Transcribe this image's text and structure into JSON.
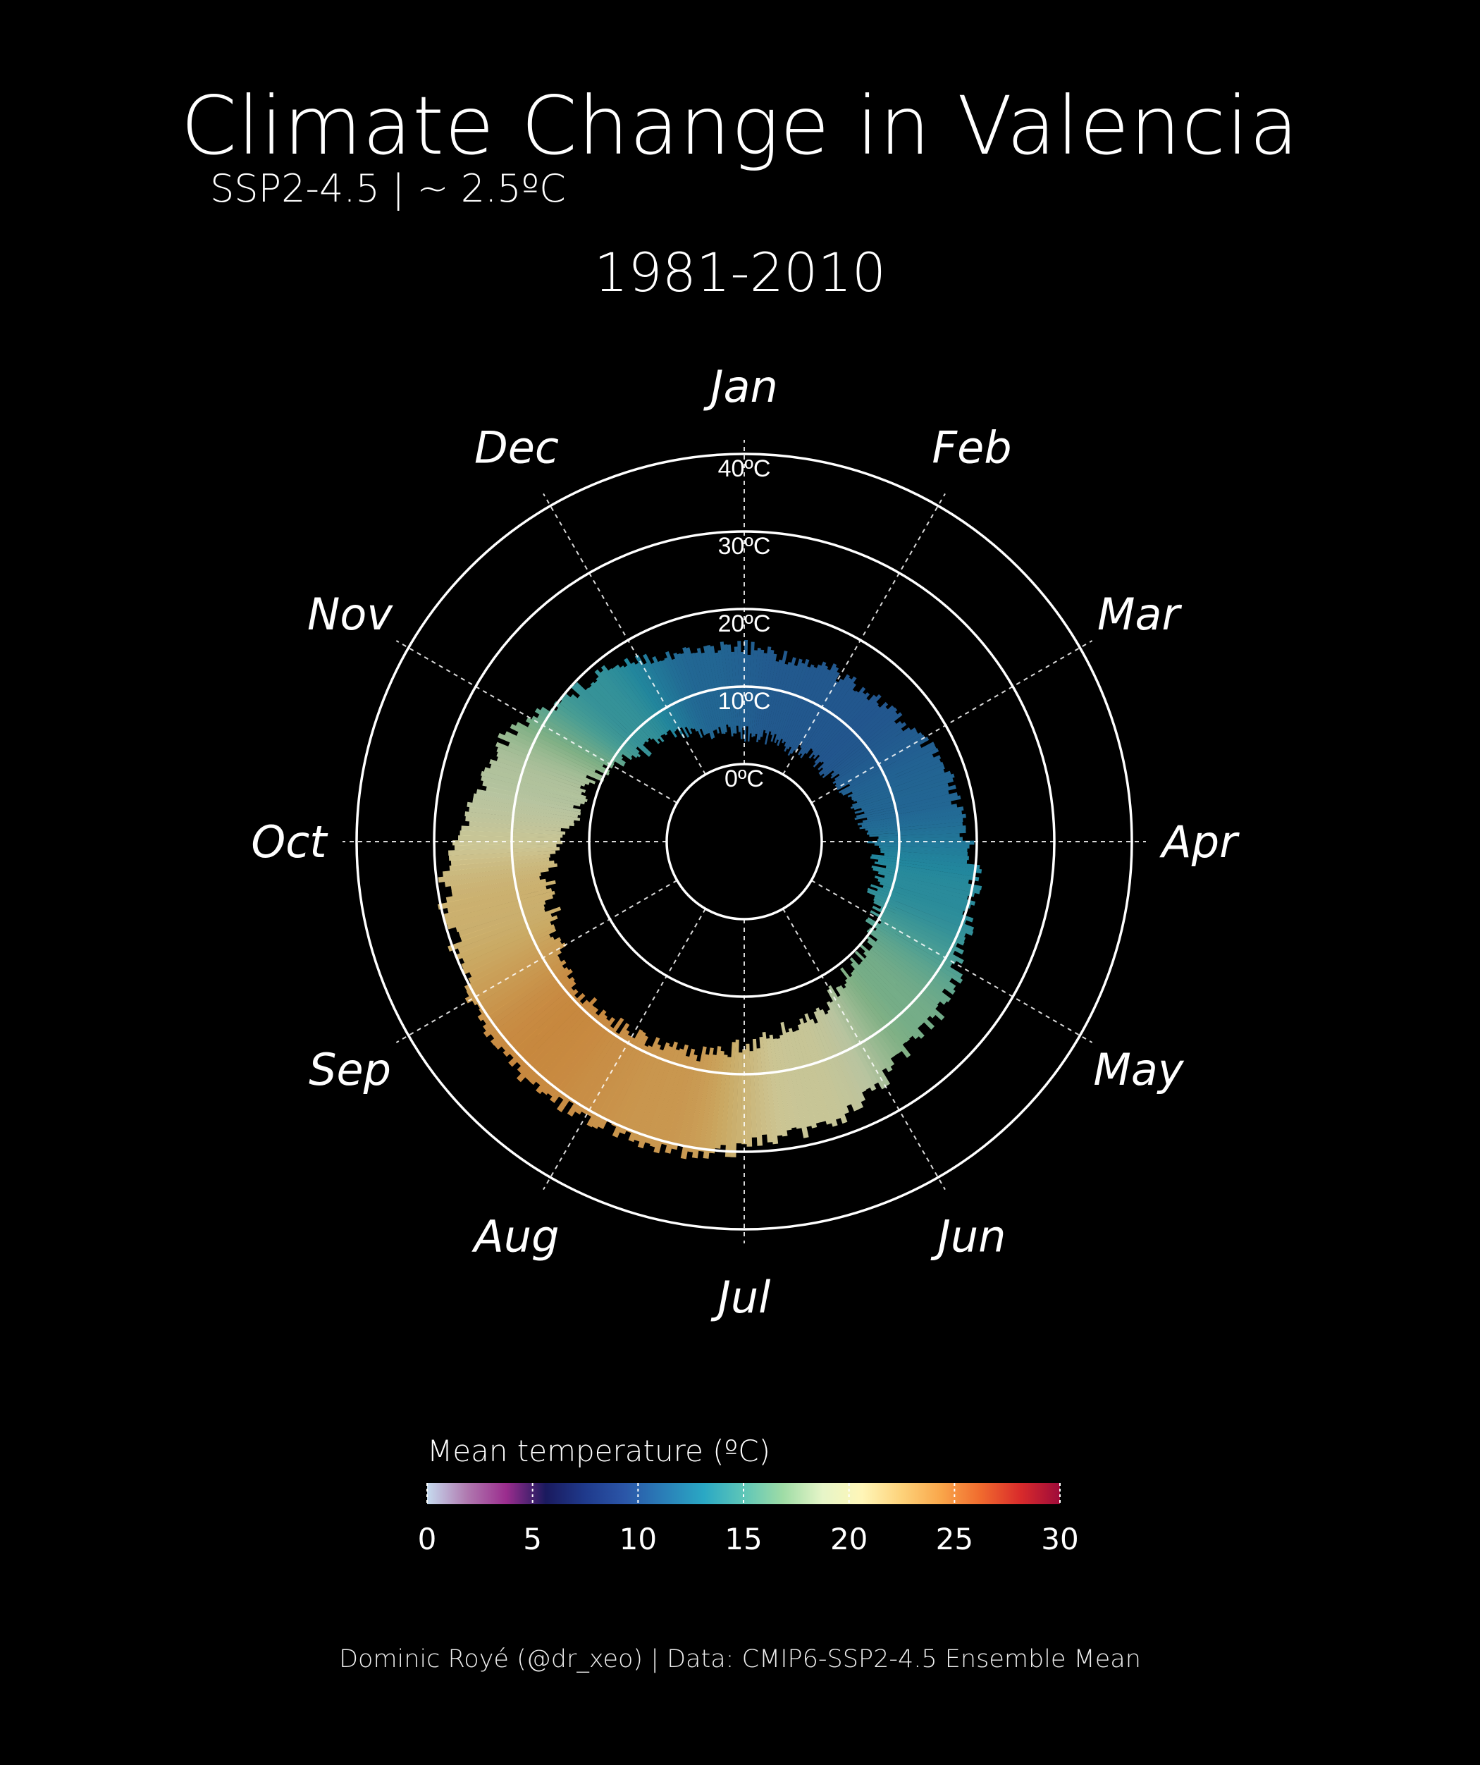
{
  "header": {
    "title": "Climate Change in Valencia",
    "subtitle": "SSP2-4.5 | ~ 2.5ºC",
    "period": "1981-2010"
  },
  "legend": {
    "title": "Mean temperature (ºC)",
    "ticks": [
      "0",
      "5",
      "10",
      "15",
      "20",
      "25",
      "30"
    ],
    "colors": [
      "#c6dbef",
      "#b07ab0",
      "#9b2d8e",
      "#1a1a5e",
      "#1f3a8c",
      "#2b56a8",
      "#2a7fb8",
      "#2aa8c4",
      "#5ec6b8",
      "#9fdca6",
      "#e6f5c8",
      "#fff6b8",
      "#fdd27a",
      "#f9a64a",
      "#f06a2e",
      "#d92b2b",
      "#9e0b3a"
    ]
  },
  "footer": "Dominic Royé (@dr_xeo) | Data: CMIP6-SSP2-4.5 Ensemble Mean",
  "chart_data": {
    "type": "polar-bar",
    "months": [
      "Jan",
      "Feb",
      "Mar",
      "Apr",
      "May",
      "Jun",
      "Jul",
      "Aug",
      "Sep",
      "Oct",
      "Nov",
      "Dec"
    ],
    "radial_ticks": [
      "0ºC",
      "10ºC",
      "20ºC",
      "30ºC",
      "40ºC"
    ],
    "radial_values": [
      0,
      10,
      20,
      30,
      40
    ],
    "rlim": [
      -10,
      40
    ],
    "unit": "ºC",
    "series": [
      {
        "values": [
          10.5,
          10.4,
          11.2,
          13.5,
          16.5,
          20.2,
          23.4,
          24.2,
          22.0,
          18.5,
          14.0,
          11.3
        ]
      }
    ],
    "range_min": [
      3.5,
      3.8,
      5.5,
      7.8,
      11.0,
      14.8,
      18.0,
      18.8,
      16.0,
      11.5,
      7.2,
      4.5
    ],
    "range_max": [
      14.5,
      15.2,
      17.5,
      20.5,
      23.5,
      28.0,
      31.0,
      31.5,
      29.5,
      24.5,
      19.0,
      15.5
    ],
    "colorbar_range": [
      0,
      30
    ]
  }
}
